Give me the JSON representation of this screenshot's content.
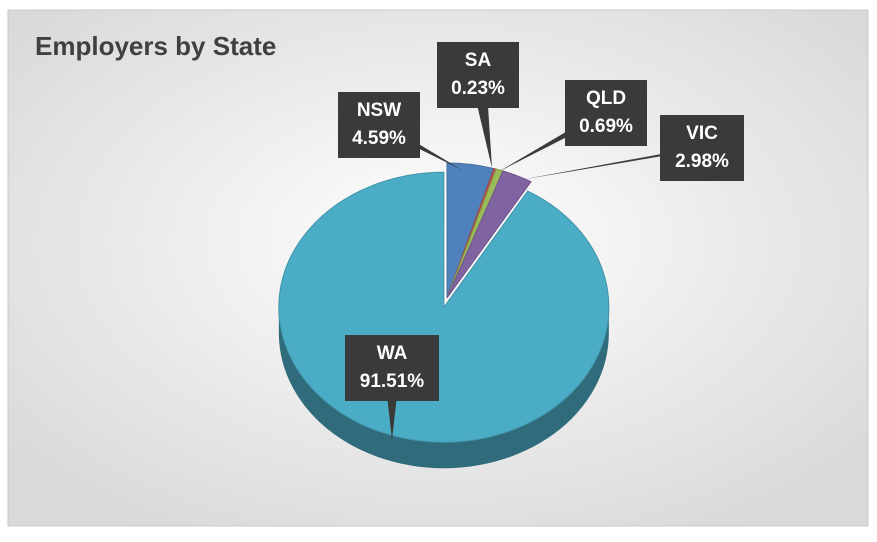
{
  "chart_data": {
    "type": "pie",
    "title": "Employers by State",
    "categories": [
      "NSW",
      "SA",
      "QLD",
      "VIC",
      "WA"
    ],
    "values": [
      4.59,
      0.23,
      0.69,
      2.98,
      91.51
    ],
    "value_labels": [
      "4.59%",
      "0.23%",
      "0.69%",
      "2.98%",
      "91.51%"
    ],
    "colors": [
      "#4f81bd",
      "#c0504d",
      "#9bbb59",
      "#8064a2",
      "#4bacc6"
    ]
  }
}
